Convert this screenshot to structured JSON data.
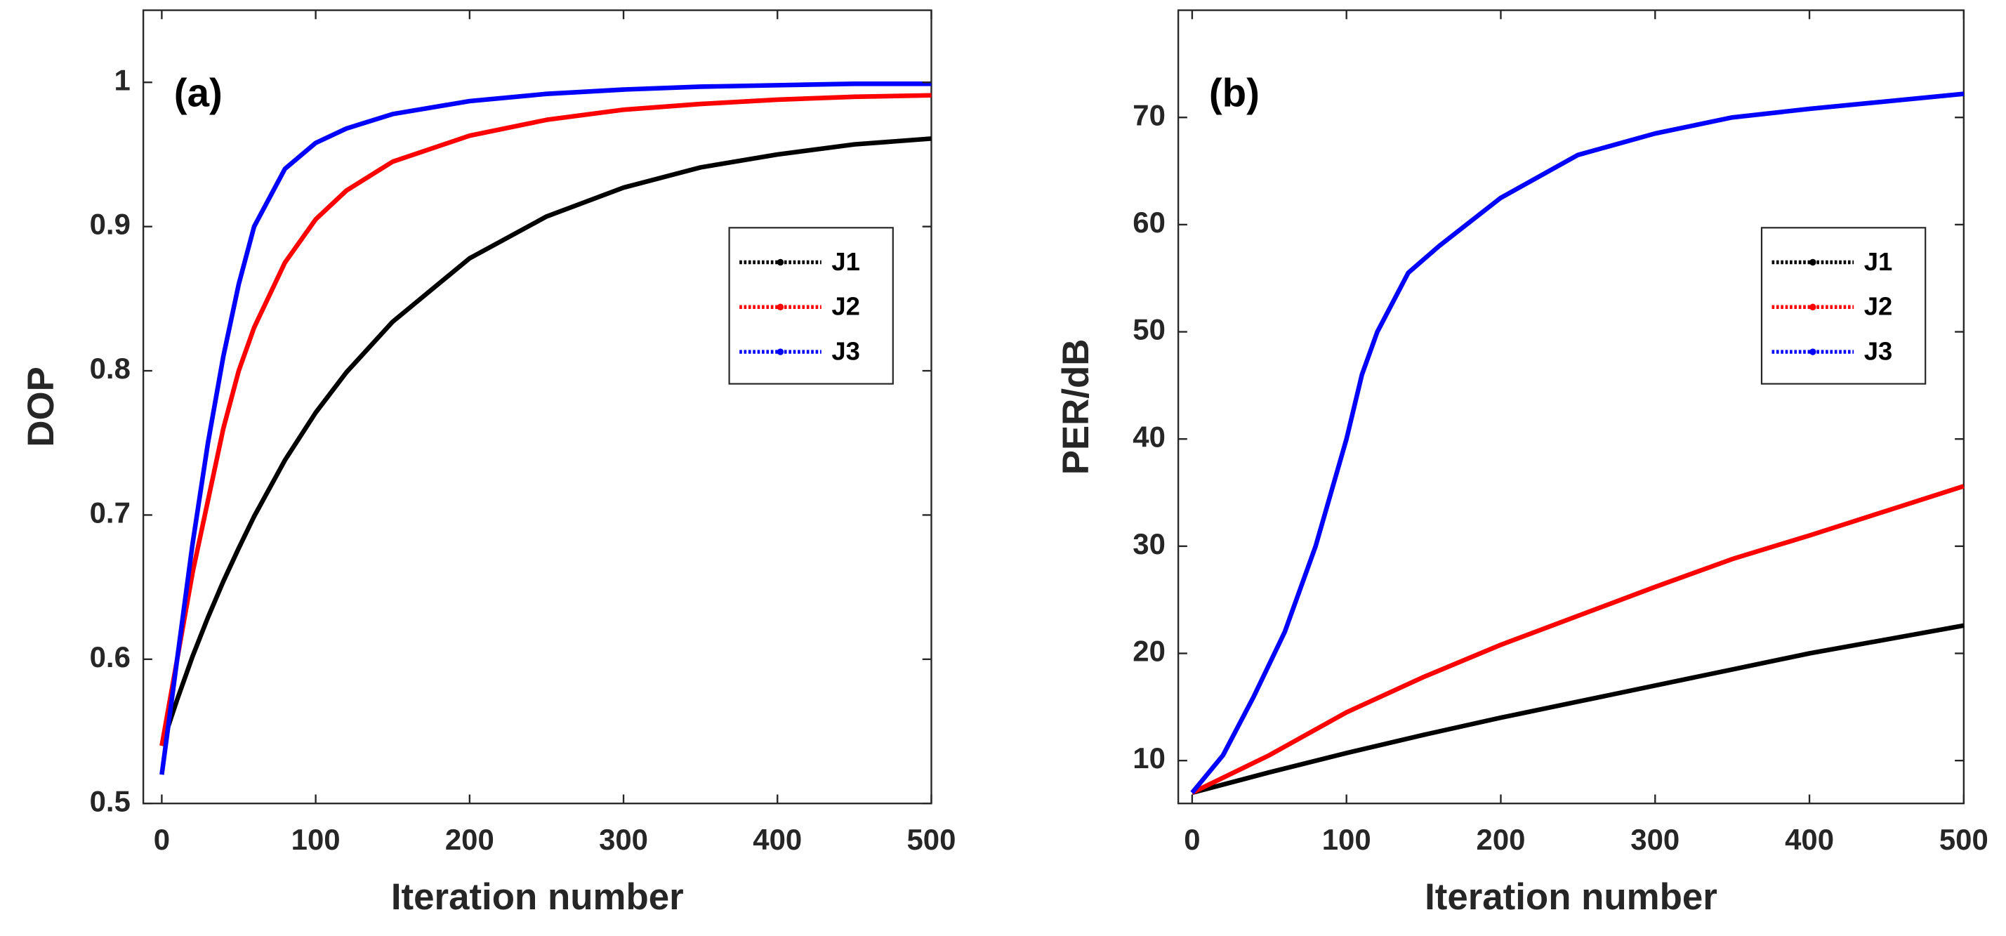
{
  "chart_data": [
    {
      "type": "line",
      "annotation": "(a)",
      "xlabel": "Iteration number",
      "ylabel": "DOP",
      "xlim": [
        -12,
        500
      ],
      "ylim": [
        0.5,
        1.05
      ],
      "xticks": [
        0,
        100,
        200,
        300,
        400,
        500
      ],
      "yticks": [
        0.5,
        0.6,
        0.7,
        0.8,
        0.9,
        1
      ],
      "legend": "right",
      "series": [
        {
          "name": "J1",
          "color": "#000000",
          "x": [
            0,
            10,
            20,
            30,
            40,
            50,
            60,
            80,
            100,
            120,
            150,
            200,
            250,
            300,
            350,
            400,
            450,
            500
          ],
          "values": [
            0.54,
            0.572,
            0.602,
            0.629,
            0.654,
            0.677,
            0.699,
            0.738,
            0.771,
            0.799,
            0.834,
            0.878,
            0.907,
            0.927,
            0.941,
            0.95,
            0.957,
            0.961
          ]
        },
        {
          "name": "J2",
          "color": "#ff0000",
          "x": [
            0,
            10,
            20,
            30,
            40,
            50,
            60,
            80,
            100,
            120,
            150,
            200,
            250,
            300,
            350,
            400,
            450,
            500
          ],
          "values": [
            0.54,
            0.6,
            0.66,
            0.71,
            0.76,
            0.8,
            0.83,
            0.875,
            0.905,
            0.925,
            0.945,
            0.963,
            0.974,
            0.981,
            0.985,
            0.988,
            0.99,
            0.991
          ]
        },
        {
          "name": "J3",
          "color": "#0000ff",
          "x": [
            0,
            10,
            20,
            30,
            40,
            50,
            60,
            80,
            100,
            120,
            150,
            200,
            250,
            300,
            350,
            400,
            450,
            500
          ],
          "values": [
            0.52,
            0.6,
            0.68,
            0.75,
            0.81,
            0.86,
            0.9,
            0.94,
            0.958,
            0.968,
            0.978,
            0.987,
            0.992,
            0.995,
            0.997,
            0.998,
            0.999,
            0.999
          ]
        }
      ]
    },
    {
      "type": "line",
      "annotation": "(b)",
      "xlabel": "Iteration number",
      "ylabel": "PER/dB",
      "xlim": [
        -9,
        500
      ],
      "ylim": [
        6,
        80
      ],
      "xticks": [
        0,
        100,
        200,
        300,
        400,
        500
      ],
      "yticks": [
        10,
        20,
        30,
        40,
        50,
        60,
        70
      ],
      "legend": "right",
      "series": [
        {
          "name": "J1",
          "color": "#000000",
          "x": [
            0,
            50,
            100,
            150,
            200,
            250,
            300,
            350,
            400,
            450,
            500
          ],
          "values": [
            7,
            8.9,
            10.7,
            12.4,
            14,
            15.5,
            17,
            18.5,
            20,
            21.3,
            22.6
          ]
        },
        {
          "name": "J2",
          "color": "#ff0000",
          "x": [
            0,
            50,
            100,
            150,
            200,
            250,
            300,
            350,
            400,
            450,
            500
          ],
          "values": [
            7,
            10.5,
            14.5,
            17.8,
            20.8,
            23.5,
            26.2,
            28.8,
            31,
            33.3,
            35.6
          ]
        },
        {
          "name": "J3",
          "color": "#0000ff",
          "x": [
            0,
            20,
            40,
            60,
            80,
            100,
            110,
            120,
            140,
            160,
            200,
            250,
            300,
            350,
            400,
            450,
            500
          ],
          "values": [
            7,
            10.5,
            16,
            22,
            30,
            40,
            46,
            50,
            55.5,
            58,
            62.5,
            66.5,
            68.5,
            70,
            70.8,
            71.5,
            72.2
          ]
        }
      ]
    }
  ]
}
